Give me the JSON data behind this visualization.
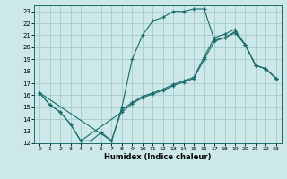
{
  "xlabel": "Humidex (Indice chaleur)",
  "bg_color": "#cce8e8",
  "grid_color": "#aacece",
  "line_color": "#1a6b6b",
  "xlim": [
    -0.5,
    23.5
  ],
  "ylim": [
    12,
    23.5
  ],
  "xticks": [
    0,
    1,
    2,
    3,
    4,
    5,
    6,
    7,
    8,
    9,
    10,
    11,
    12,
    13,
    14,
    15,
    16,
    17,
    18,
    19,
    20,
    21,
    22,
    23
  ],
  "yticks": [
    12,
    13,
    14,
    15,
    16,
    17,
    18,
    19,
    20,
    21,
    22,
    23
  ],
  "series": [
    {
      "x": [
        0,
        1,
        2,
        3,
        4,
        5,
        6,
        7,
        8,
        9,
        10,
        11,
        12,
        13,
        14,
        15,
        16,
        17,
        18,
        19,
        20,
        21,
        22,
        23
      ],
      "y": [
        16.2,
        15.2,
        14.6,
        13.6,
        12.2,
        12.2,
        12.9,
        12.2,
        15.0,
        19.0,
        21.0,
        22.2,
        22.5,
        23.0,
        23.0,
        23.2,
        23.2,
        20.6,
        20.8,
        21.3,
        20.2,
        18.5,
        18.2,
        17.4
      ]
    },
    {
      "x": [
        0,
        1,
        2,
        3,
        4,
        8,
        9,
        10,
        11,
        12,
        13,
        14,
        15,
        16,
        17,
        18,
        19,
        20,
        21,
        22,
        23
      ],
      "y": [
        16.2,
        15.2,
        14.6,
        13.6,
        12.2,
        14.6,
        15.3,
        15.8,
        16.1,
        16.4,
        16.8,
        17.1,
        17.4,
        19.0,
        20.5,
        20.8,
        21.2,
        20.2,
        18.5,
        18.2,
        17.4
      ]
    },
    {
      "x": [
        0,
        7,
        8,
        9,
        10,
        11,
        12,
        13,
        14,
        15,
        16,
        17,
        18,
        19,
        20,
        21,
        22,
        23
      ],
      "y": [
        16.2,
        12.2,
        14.8,
        15.4,
        15.9,
        16.2,
        16.5,
        16.9,
        17.2,
        17.5,
        19.2,
        20.8,
        21.1,
        21.5,
        20.2,
        18.5,
        18.2,
        17.4
      ]
    }
  ]
}
